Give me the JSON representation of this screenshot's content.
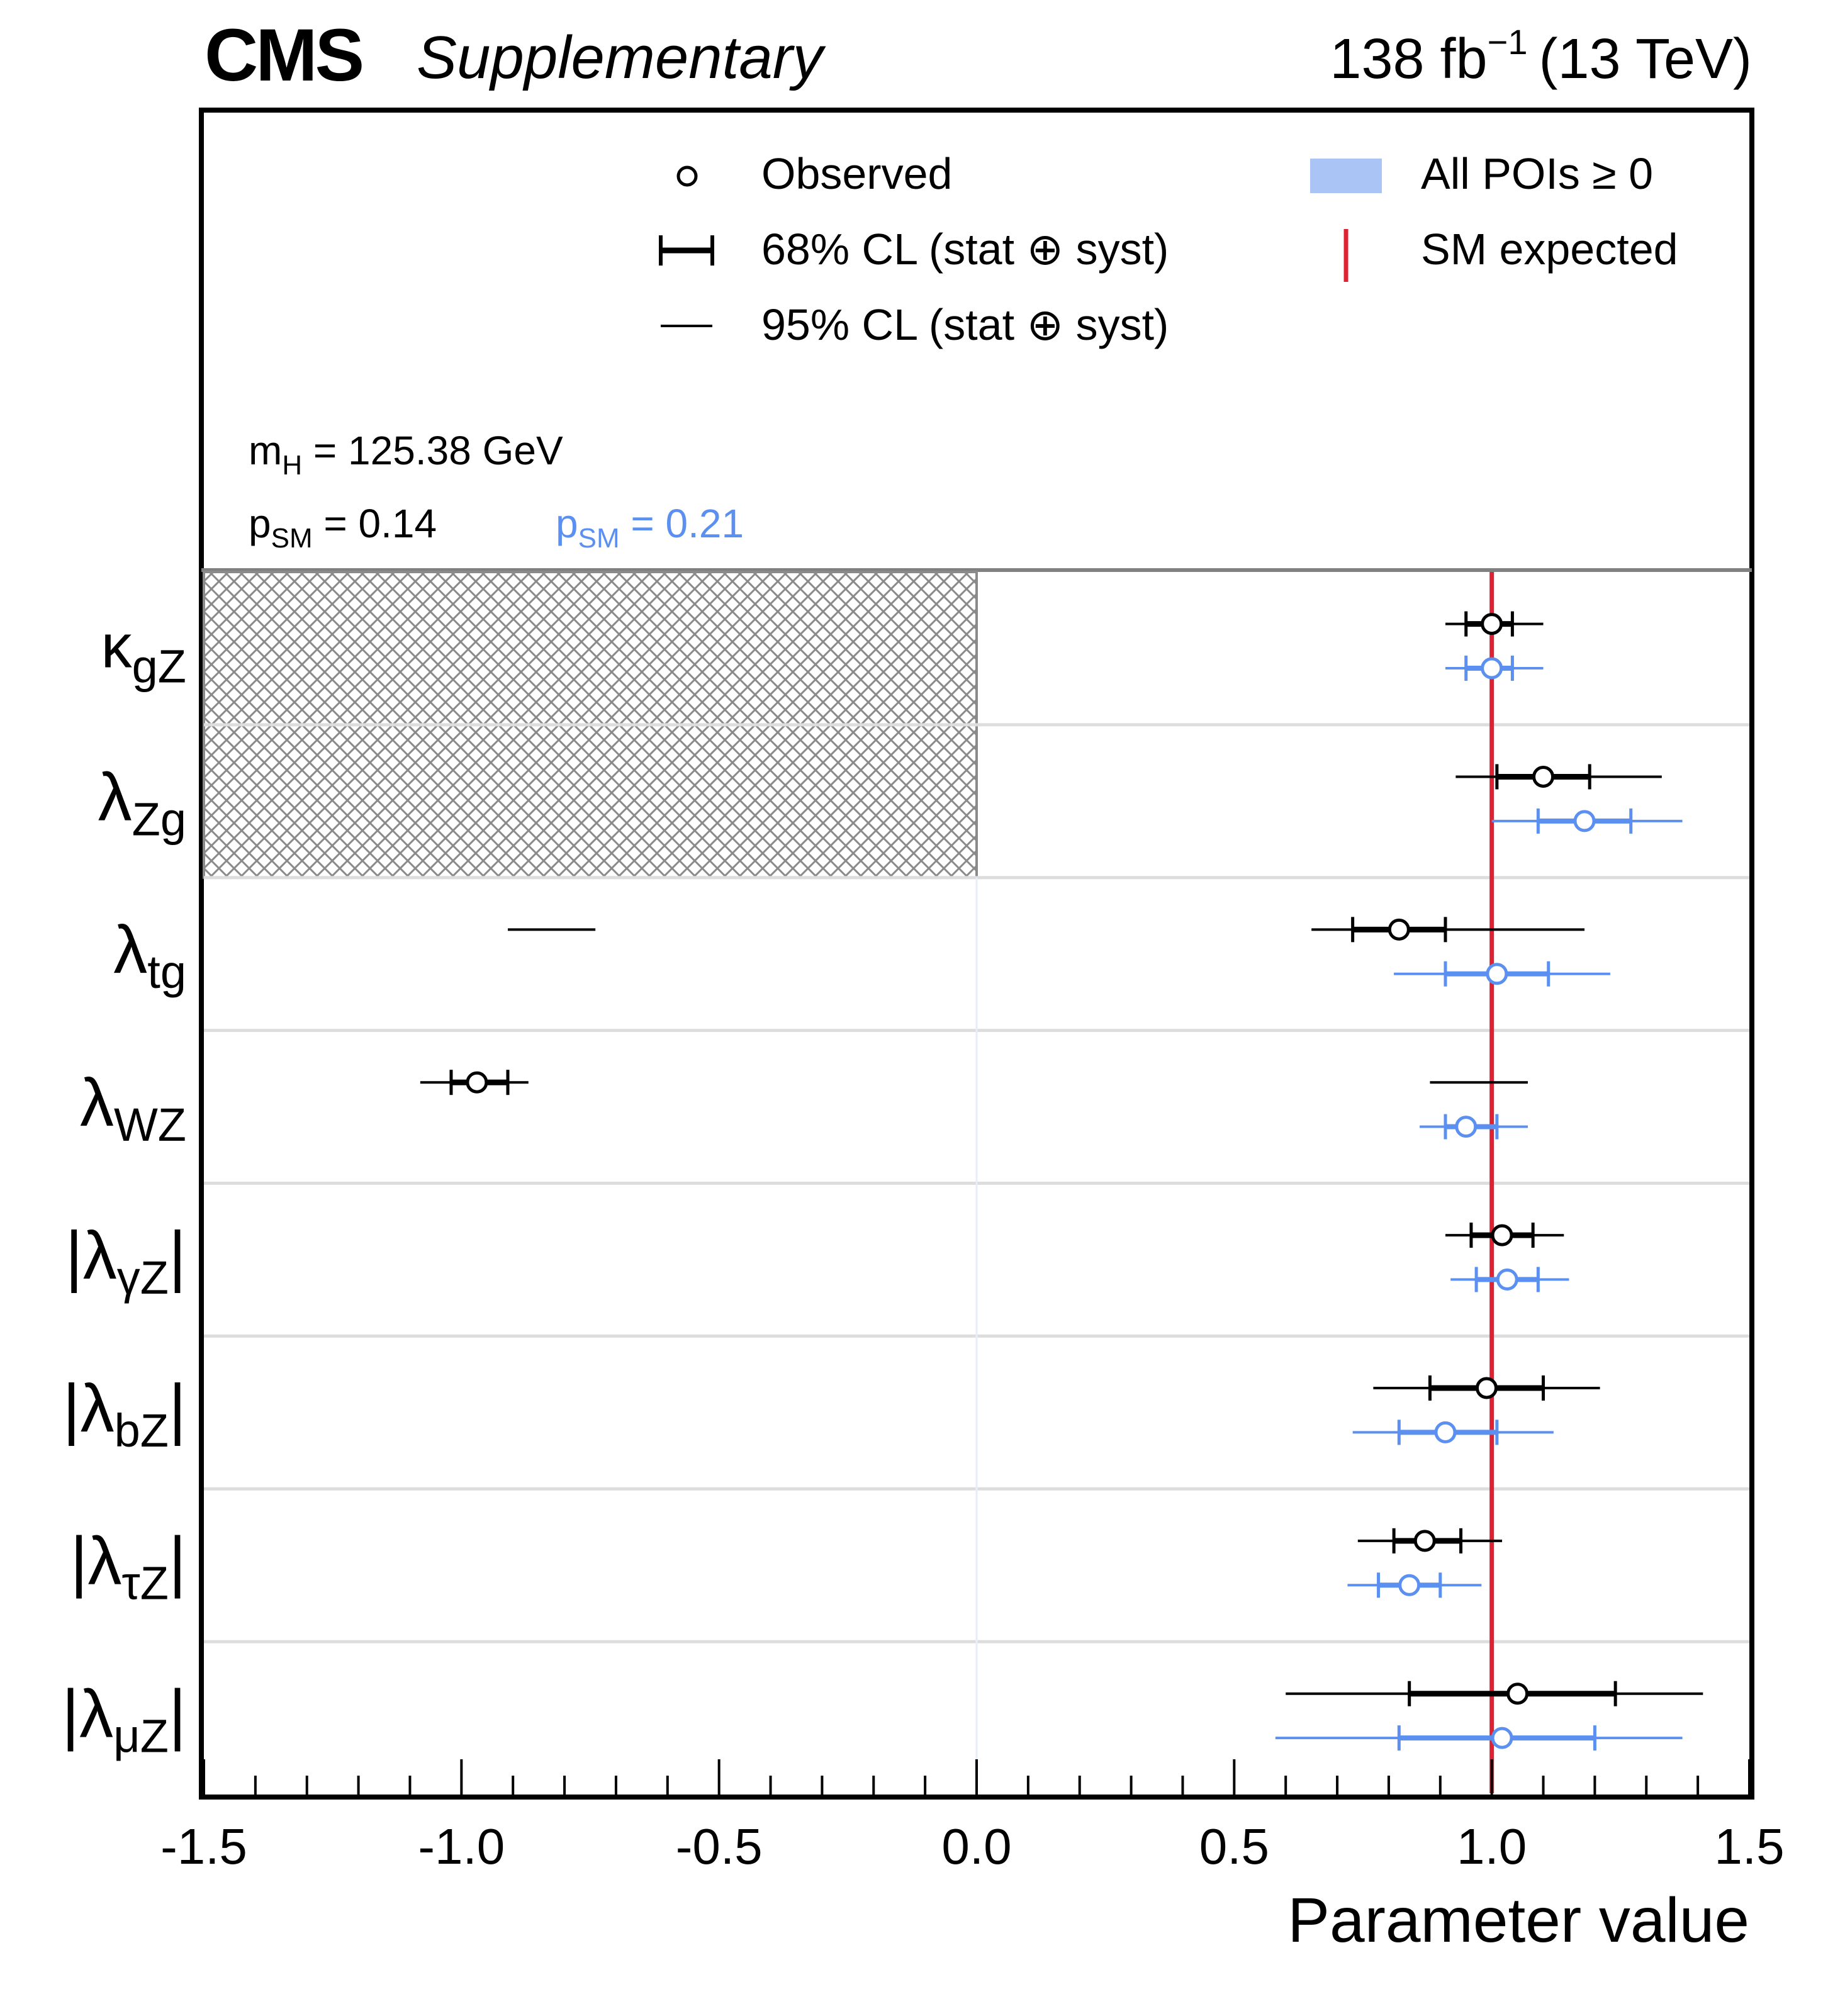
{
  "header": {
    "cms": "CMS",
    "supplementary": "Supplementary",
    "lumi_value": "138 fb",
    "lumi_exp": "−1",
    "energy": "(13 TeV)"
  },
  "legend": {
    "observed": "Observed",
    "cl68": "68% CL (stat ⊕ syst)",
    "cl95": "95% CL (stat ⊕ syst)",
    "allpois": "All POIs  ≥ 0",
    "sm_expected": "SM expected"
  },
  "annotations": {
    "mh_m": "m",
    "mh_sub": "H",
    "mh_rest": " = 125.38 GeV",
    "psm_p": "p",
    "psm_sub": "SM",
    "psm_rest": " = 0.14",
    "psm2_p": "p",
    "psm2_sub": "SM",
    "psm2_rest": " = 0.21"
  },
  "colors": {
    "observed": "#000000",
    "allpois": "#5b8ff0",
    "allpois_fill": "#a9c4f5",
    "sm_line": "#dd2233",
    "hatch": "#8a8a8a",
    "row_sep": "#dddddd"
  },
  "chart_data": {
    "type": "forest",
    "xlabel": "Parameter value",
    "xlim": [
      -1.5,
      1.5
    ],
    "xticks": [
      -1.5,
      -1.0,
      -0.5,
      0.0,
      0.5,
      1.0,
      1.5
    ],
    "xtick_labels": [
      "-1.5",
      "-1.0",
      "-0.5",
      "0.0",
      "0.5",
      "1.0",
      "1.5"
    ],
    "sm_expected": 1.0,
    "hatched_region": {
      "x": [
        -1.5,
        0.0
      ],
      "rows": [
        "kappa_gZ",
        "lambda_Zg"
      ]
    },
    "parameters": [
      {
        "id": "kappa_gZ",
        "label_main": "κ",
        "label_sub": "gZ",
        "abs": false,
        "observed": {
          "value": 1.0,
          "cl68": [
            0.95,
            1.04
          ],
          "cl95": [
            [
              0.91,
              1.1
            ]
          ]
        },
        "allpois": {
          "value": 1.0,
          "cl68": [
            0.95,
            1.04
          ],
          "cl95": [
            [
              0.91,
              1.1
            ]
          ]
        }
      },
      {
        "id": "lambda_Zg",
        "label_main": "λ",
        "label_sub": "Zg",
        "abs": false,
        "observed": {
          "value": 1.1,
          "cl68": [
            1.01,
            1.19
          ],
          "cl95": [
            [
              0.93,
              1.33
            ]
          ]
        },
        "allpois": {
          "value": 1.18,
          "cl68": [
            1.09,
            1.27
          ],
          "cl95": [
            [
              1.0,
              1.37
            ]
          ]
        }
      },
      {
        "id": "lambda_tg",
        "label_main": "λ",
        "label_sub": "tg",
        "abs": false,
        "observed": {
          "value": 0.82,
          "cl68": [
            0.73,
            0.91
          ],
          "cl95": [
            [
              -0.91,
              -0.74
            ],
            [
              0.65,
              1.18
            ]
          ]
        },
        "allpois": {
          "value": 1.01,
          "cl68": [
            0.91,
            1.11
          ],
          "cl95": [
            [
              0.81,
              1.23
            ]
          ]
        }
      },
      {
        "id": "lambda_WZ",
        "label_main": "λ",
        "label_sub": "WZ",
        "abs": false,
        "observed": {
          "value": -0.97,
          "cl68": [
            -1.02,
            -0.91
          ],
          "cl95": [
            [
              -1.08,
              -0.87
            ],
            [
              0.88,
              1.07
            ]
          ]
        },
        "allpois": {
          "value": 0.95,
          "cl68": [
            0.91,
            1.01
          ],
          "cl95": [
            [
              0.86,
              1.07
            ]
          ]
        }
      },
      {
        "id": "lambda_gammaZ",
        "label_main": "λ",
        "label_sub": "γZ",
        "abs": true,
        "observed": {
          "value": 1.02,
          "cl68": [
            0.96,
            1.08
          ],
          "cl95": [
            [
              0.91,
              1.14
            ]
          ]
        },
        "allpois": {
          "value": 1.03,
          "cl68": [
            0.97,
            1.09
          ],
          "cl95": [
            [
              0.92,
              1.15
            ]
          ]
        }
      },
      {
        "id": "lambda_bZ",
        "label_main": "λ",
        "label_sub": "bZ",
        "abs": true,
        "observed": {
          "value": 0.99,
          "cl68": [
            0.88,
            1.1
          ],
          "cl95": [
            [
              0.77,
              1.21
            ]
          ]
        },
        "allpois": {
          "value": 0.91,
          "cl68": [
            0.82,
            1.01
          ],
          "cl95": [
            [
              0.73,
              1.12
            ]
          ]
        }
      },
      {
        "id": "lambda_tauZ",
        "label_main": "λ",
        "label_sub": "τZ",
        "abs": true,
        "observed": {
          "value": 0.87,
          "cl68": [
            0.81,
            0.94
          ],
          "cl95": [
            [
              0.74,
              1.02
            ]
          ]
        },
        "allpois": {
          "value": 0.84,
          "cl68": [
            0.78,
            0.9
          ],
          "cl95": [
            [
              0.72,
              0.98
            ]
          ]
        }
      },
      {
        "id": "lambda_muZ",
        "label_main": "λ",
        "label_sub": "μZ",
        "abs": true,
        "observed": {
          "value": 1.05,
          "cl68": [
            0.84,
            1.24
          ],
          "cl95": [
            [
              0.6,
              1.41
            ]
          ]
        },
        "allpois": {
          "value": 1.02,
          "cl68": [
            0.82,
            1.2
          ],
          "cl95": [
            [
              0.58,
              1.37
            ]
          ]
        }
      }
    ]
  }
}
